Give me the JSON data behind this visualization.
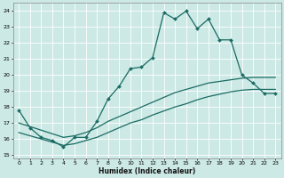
{
  "xlabel": "Humidex (Indice chaleur)",
  "xlim": [
    -0.5,
    23.5
  ],
  "ylim": [
    14.8,
    24.5
  ],
  "yticks": [
    15,
    16,
    17,
    18,
    19,
    20,
    21,
    22,
    23,
    24
  ],
  "xticks": [
    0,
    1,
    2,
    3,
    4,
    5,
    6,
    7,
    8,
    9,
    10,
    11,
    12,
    13,
    14,
    15,
    16,
    17,
    18,
    19,
    20,
    21,
    22,
    23
  ],
  "bg_color": "#cce9e5",
  "line_color": "#1a6b63",
  "grid_color": "#ffffff",
  "line1_x": [
    0,
    1,
    2,
    3,
    4,
    5,
    6,
    7,
    8,
    9,
    10,
    11,
    12,
    13,
    14,
    15,
    16,
    17,
    18,
    19,
    20,
    21,
    22,
    23
  ],
  "line1_y": [
    17.8,
    16.7,
    16.1,
    15.9,
    15.5,
    16.1,
    16.1,
    17.1,
    18.5,
    19.3,
    20.4,
    20.5,
    21.1,
    23.9,
    23.5,
    24.0,
    22.9,
    23.5,
    22.2,
    22.2,
    20.0,
    19.5,
    18.85,
    18.85
  ],
  "line2_x": [
    0,
    4,
    5,
    6,
    7,
    8,
    9,
    10,
    11,
    12,
    13,
    14,
    15,
    16,
    17,
    18,
    19,
    20,
    21,
    22,
    23
  ],
  "line2_y": [
    17.0,
    16.1,
    16.2,
    16.4,
    16.7,
    17.1,
    17.4,
    17.7,
    18.0,
    18.3,
    18.6,
    18.9,
    19.1,
    19.3,
    19.5,
    19.6,
    19.7,
    19.8,
    19.85,
    19.85,
    19.85
  ],
  "line3_x": [
    0,
    4,
    5,
    6,
    7,
    8,
    9,
    10,
    11,
    12,
    13,
    14,
    15,
    16,
    17,
    18,
    19,
    20,
    21,
    22,
    23
  ],
  "line3_y": [
    16.4,
    15.6,
    15.7,
    15.9,
    16.1,
    16.4,
    16.7,
    17.0,
    17.2,
    17.5,
    17.75,
    18.0,
    18.2,
    18.45,
    18.65,
    18.8,
    18.95,
    19.05,
    19.1,
    19.1,
    19.1
  ]
}
